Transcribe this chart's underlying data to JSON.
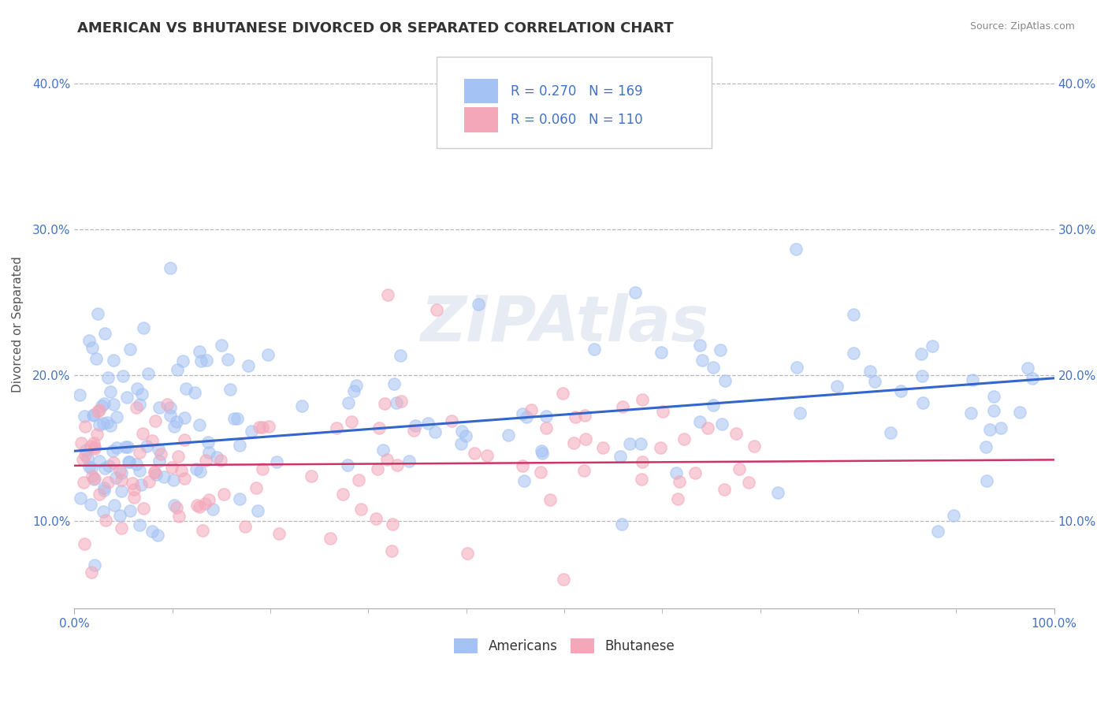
{
  "title": "AMERICAN VS BHUTANESE DIVORCED OR SEPARATED CORRELATION CHART",
  "source": "Source: ZipAtlas.com",
  "ylabel": "Divorced or Separated",
  "xlim": [
    0.0,
    1.0
  ],
  "ylim": [
    0.04,
    0.43
  ],
  "x_tick_labels": [
    "0.0%",
    "100.0%"
  ],
  "y_tick_labels": [
    "10.0%",
    "20.0%",
    "30.0%",
    "40.0%"
  ],
  "y_ticks": [
    0.1,
    0.2,
    0.3,
    0.4
  ],
  "legend_r_blue": "R = 0.270",
  "legend_n_blue": "N = 169",
  "legend_r_pink": "R = 0.060",
  "legend_n_pink": "N = 110",
  "color_blue": "#a4c2f4",
  "color_pink": "#f4a7b9",
  "line_color_blue": "#3366cc",
  "line_color_pink": "#cc3366",
  "background_color": "#ffffff",
  "grid_color": "#b0b0b0",
  "title_fontsize": 13,
  "axis_label_fontsize": 11,
  "tick_fontsize": 11,
  "legend_fontsize": 12,
  "blue_line_x0": 0.0,
  "blue_line_y0": 0.148,
  "blue_line_x1": 1.0,
  "blue_line_y1": 0.198,
  "pink_line_x0": 0.0,
  "pink_line_y0": 0.138,
  "pink_line_x1": 1.0,
  "pink_line_y1": 0.142
}
